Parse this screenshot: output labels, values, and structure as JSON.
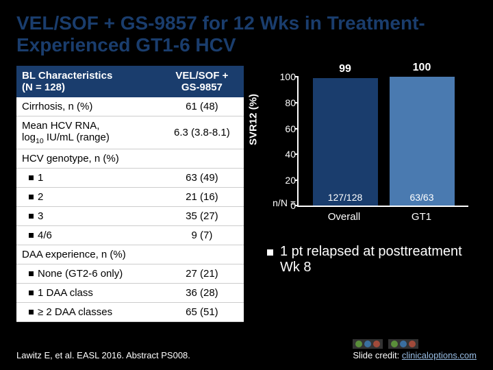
{
  "title": "VEL/SOF + GS-9857 for 12 Wks in Treatment-Experienced GT1-6 HCV",
  "table": {
    "header_left": "BL Characteristics (N = 128)",
    "header_right": "VEL/SOF + GS-9857",
    "rows": [
      {
        "label": "Cirrhosis, n (%)",
        "value": "61 (48)",
        "indent": false
      },
      {
        "label": "Mean HCV RNA, log10 IU/mL (range)",
        "value": "6.3 (3.8-8.1)",
        "indent": false,
        "hasSub": true
      },
      {
        "label": "HCV genotype, n (%)",
        "value": "",
        "indent": false
      },
      {
        "label": "1",
        "value": "63 (49)",
        "indent": true
      },
      {
        "label": "2",
        "value": "21 (16)",
        "indent": true
      },
      {
        "label": "3",
        "value": "35 (27)",
        "indent": true
      },
      {
        "label": "4/6",
        "value": "9 (7)",
        "indent": true
      },
      {
        "label": "DAA experience, n (%)",
        "value": "",
        "indent": false
      },
      {
        "label": "None (GT2-6 only)",
        "value": "27 (21)",
        "indent": true
      },
      {
        "label": "1 DAA class",
        "value": "36 (28)",
        "indent": true
      },
      {
        "label": "≥ 2 DAA classes",
        "value": "65 (51)",
        "indent": true
      }
    ]
  },
  "chart": {
    "type": "bar",
    "ylabel": "SVR12 (%)",
    "ylim": [
      0,
      100
    ],
    "ytick_step": 20,
    "nN_label": "n/N =",
    "bars": [
      {
        "label": "Overall",
        "value": 99,
        "n": "127/128",
        "color": "#1a3d6d"
      },
      {
        "label": "GT1",
        "value": 100,
        "n": "63/63",
        "color": "#4a7ab0"
      }
    ],
    "axis_color": "#ffffff"
  },
  "note": "1 pt relapsed at posttreatment Wk 8",
  "footer": {
    "citation": "Lawitz E, et al. EASL 2016. Abstract PS008.",
    "credit_prefix": "Slide credit: ",
    "credit_link": "clinicaloptions.com"
  }
}
